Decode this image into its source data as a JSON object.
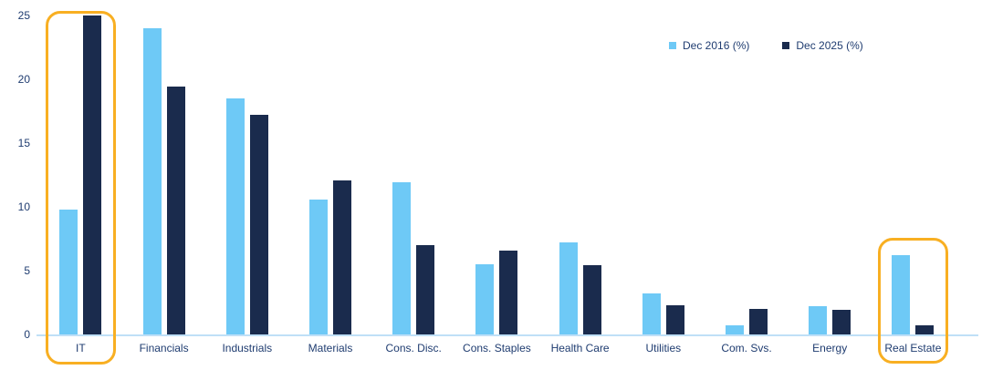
{
  "chart_data": {
    "type": "bar",
    "title": "",
    "xlabel": "",
    "ylabel": "",
    "categories": [
      "IT",
      "Financials",
      "Industrials",
      "Materials",
      "Cons. Disc.",
      "Cons. Staples",
      "Health Care",
      "Utilities",
      "Com. Svs.",
      "Energy",
      "Real Estate"
    ],
    "series": [
      {
        "name": "Dec 2016 (%)",
        "color": "#6EC9F6",
        "values": [
          9.8,
          24.0,
          18.5,
          10.6,
          11.9,
          5.5,
          7.2,
          3.2,
          0.7,
          2.2,
          6.2
        ]
      },
      {
        "name": "Dec 2025 (%)",
        "color": "#1A2B4D",
        "values": [
          25.0,
          19.4,
          17.2,
          12.1,
          7.0,
          6.6,
          5.4,
          2.3,
          2.0,
          1.9,
          0.7
        ]
      }
    ],
    "ylim": [
      0,
      25
    ],
    "yticks": [
      0,
      5,
      10,
      15,
      20,
      25
    ],
    "grid": false,
    "legend_position": "top-right",
    "annotations": [
      {
        "type": "highlight-box",
        "category": "IT",
        "extent": "full-column",
        "color": "#F8AF22"
      },
      {
        "type": "highlight-box",
        "category": "Real Estate",
        "extent": "bars-and-label",
        "color": "#F8AF22"
      }
    ]
  },
  "legend": {
    "items": [
      {
        "label": "Dec 2016 (%)",
        "color": "#6EC9F6"
      },
      {
        "label": "Dec 2025 (%)",
        "color": "#1A2B4D"
      }
    ]
  },
  "colors": {
    "series_2016": "#6EC9F6",
    "series_2025": "#1A2B4D",
    "axis_line": "#BFE0F7",
    "text": "#1F3C70",
    "highlight": "#F8AF22",
    "background": "#FFFFFF"
  }
}
